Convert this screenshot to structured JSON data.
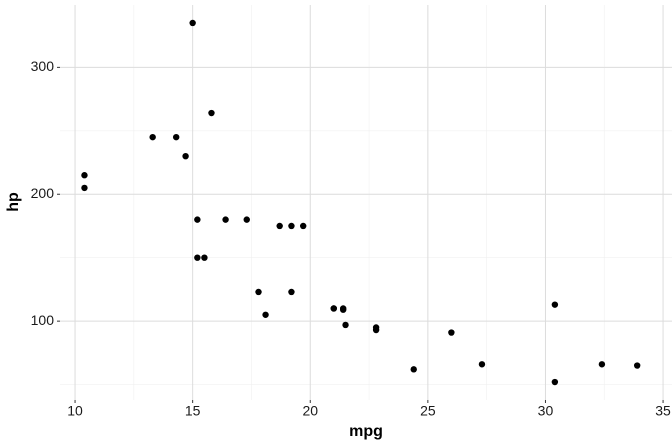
{
  "chart_data": {
    "type": "scatter",
    "x_label": "mpg",
    "y_label": "hp",
    "x": [
      21.0,
      21.0,
      22.8,
      21.4,
      18.7,
      18.1,
      14.3,
      24.4,
      22.8,
      19.2,
      17.8,
      16.4,
      17.3,
      15.2,
      10.4,
      10.4,
      14.7,
      32.4,
      30.4,
      33.9,
      21.5,
      15.5,
      15.2,
      13.3,
      19.2,
      27.3,
      26.0,
      30.4,
      15.8,
      19.7,
      15.0,
      21.4
    ],
    "values": [
      110,
      110,
      93,
      110,
      175,
      105,
      245,
      62,
      95,
      123,
      123,
      180,
      180,
      180,
      205,
      215,
      230,
      66,
      52,
      65,
      97,
      150,
      150,
      245,
      175,
      66,
      91,
      113,
      264,
      175,
      335,
      109
    ],
    "color": "#000000",
    "xlim": [
      9.36,
      35.38
    ],
    "ylim": [
      37.85,
      349.15
    ],
    "xticks": [
      10,
      15,
      20,
      25,
      30,
      35
    ],
    "yticks": [
      100,
      200,
      300
    ],
    "minor_xticks": [
      12.5,
      17.5,
      22.5,
      27.5,
      32.5
    ],
    "minor_yticks": [
      50,
      150,
      250
    ],
    "grid": true
  }
}
